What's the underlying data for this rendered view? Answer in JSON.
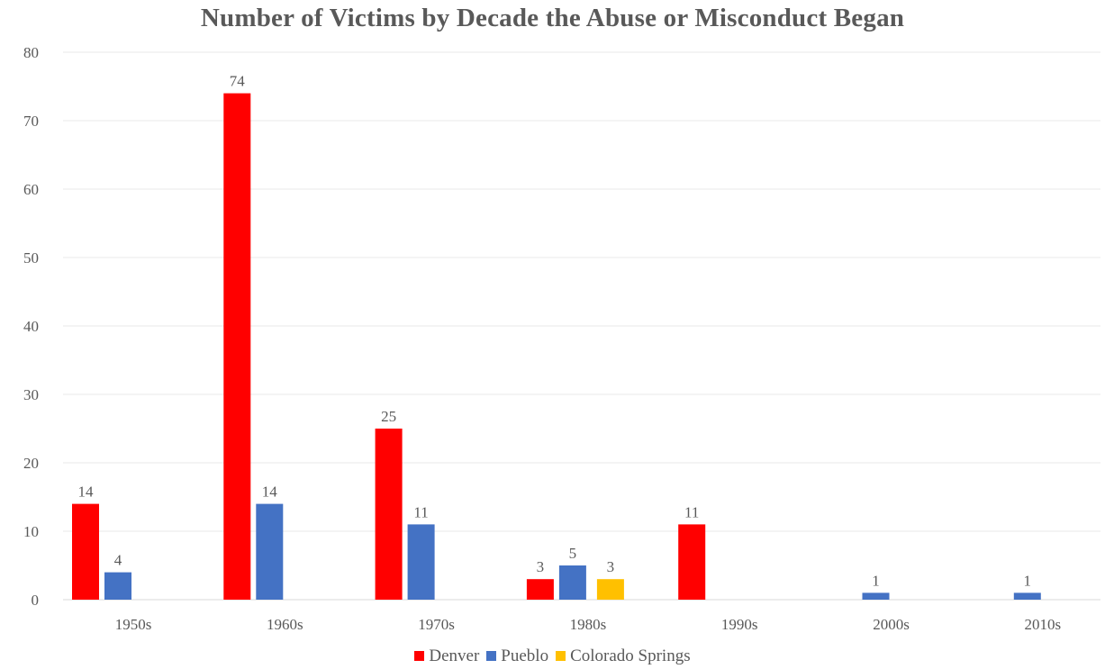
{
  "chart_data": {
    "type": "bar",
    "title": "Number of Victims by Decade the Abuse or Misconduct Began",
    "xlabel": "",
    "ylabel": "",
    "ylim": [
      0,
      80
    ],
    "yticks": [
      0,
      10,
      20,
      30,
      40,
      50,
      60,
      70,
      80
    ],
    "grid": true,
    "legend_position": "bottom",
    "categories": [
      "1950s",
      "1960s",
      "1970s",
      "1980s",
      "1990s",
      "2000s",
      "2010s"
    ],
    "series": [
      {
        "name": "Denver",
        "color": "#FF0000",
        "values": [
          14,
          74,
          25,
          3,
          11,
          null,
          null
        ]
      },
      {
        "name": "Pueblo",
        "color": "#4472C4",
        "values": [
          4,
          14,
          11,
          5,
          null,
          1,
          1
        ]
      },
      {
        "name": "Colorado Springs",
        "color": "#FFC000",
        "values": [
          null,
          null,
          null,
          3,
          null,
          null,
          null
        ]
      }
    ]
  }
}
